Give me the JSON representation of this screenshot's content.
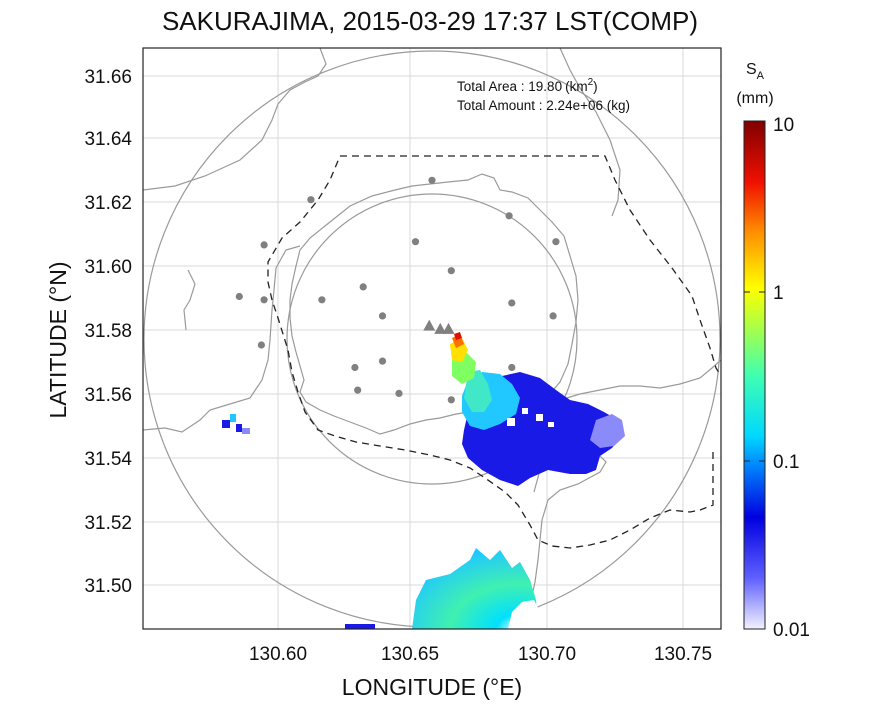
{
  "title": "SAKURAJIMA, 2015-03-29 17:37 LST(COMP)",
  "xlabel": "LONGITUDE (°E)",
  "ylabel": "LATITUDE (°N)",
  "x_ticks": [
    "130.60",
    "130.65",
    "130.70",
    "130.75"
  ],
  "y_ticks": [
    "31.66",
    "31.64",
    "31.62",
    "31.60",
    "31.58",
    "31.56",
    "31.54",
    "31.52",
    "31.50"
  ],
  "annotation": {
    "area_label": "Total Area   : 19.80",
    "area_unit_base": "(km",
    "area_unit_sup": "2",
    "area_unit_close": ")",
    "amount_label": "Total Amount : 2.24e+06 (kg)"
  },
  "colorbar": {
    "symbol": "S",
    "symbol_sub": "A",
    "unit": "(mm)",
    "ticks": [
      "10",
      "1",
      "0.1",
      "0.01"
    ],
    "scale": "log"
  },
  "map": {
    "xlim": [
      130.553,
      130.763
    ],
    "ylim": [
      31.487,
      31.667
    ],
    "grid": true,
    "vent_markers": [
      [
        130.657,
        31.581
      ],
      [
        130.661,
        31.58
      ],
      [
        130.664,
        31.58
      ]
    ],
    "stations": [
      [
        130.658,
        31.626
      ],
      [
        130.614,
        31.62
      ],
      [
        130.686,
        31.615
      ],
      [
        130.597,
        31.606
      ],
      [
        130.652,
        31.607
      ],
      [
        130.703,
        31.607
      ],
      [
        130.665,
        31.598
      ],
      [
        130.588,
        31.59
      ],
      [
        130.597,
        31.589
      ],
      [
        130.633,
        31.593
      ],
      [
        130.687,
        31.588
      ],
      [
        130.618,
        31.589
      ],
      [
        130.64,
        31.584
      ],
      [
        130.702,
        31.584
      ],
      [
        130.596,
        31.575
      ],
      [
        130.63,
        31.568
      ],
      [
        130.64,
        31.57
      ],
      [
        130.687,
        31.568
      ],
      [
        130.631,
        31.561
      ],
      [
        130.646,
        31.56
      ],
      [
        130.665,
        31.558
      ]
    ]
  },
  "colors": {
    "dashed_boundary": "#222222",
    "coastline": "#9a9a9a",
    "grid": "#d8d8d8",
    "station": "#808080"
  }
}
